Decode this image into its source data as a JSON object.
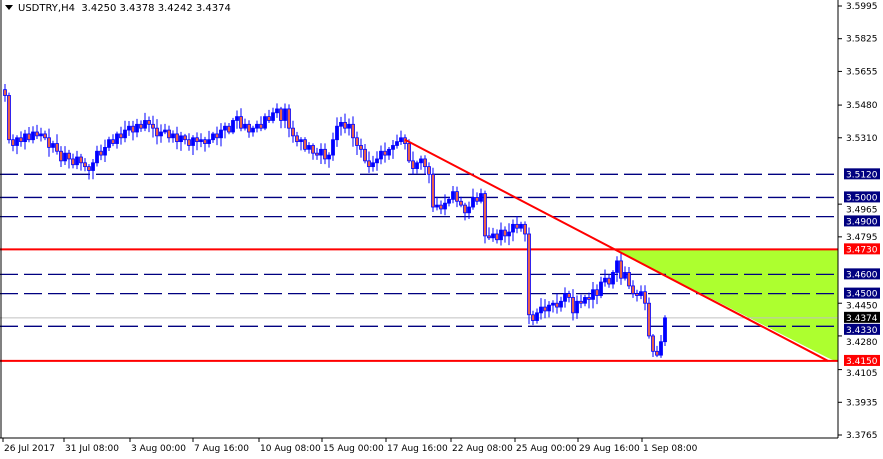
{
  "header": {
    "symbol": "USDTRY,H4",
    "open": "3.4250",
    "high": "3.4378",
    "low": "3.4242",
    "close": "3.4374",
    "menu_icon": "triangle-down-icon"
  },
  "chart_data": {
    "type": "candlestick",
    "symbol": "USDTRY",
    "timeframe": "H4",
    "ylim": [
      3.3765,
      3.5995
    ],
    "y_ticks": [
      "3.5995",
      "3.5825",
      "3.5655",
      "3.5480",
      "3.5310",
      "3.4965",
      "3.4795",
      "3.4450",
      "3.4280",
      "3.4105",
      "3.3935",
      "3.3765"
    ],
    "x_ticks": [
      "26 Jul 2017",
      "31 Jul 08:00",
      "3 Aug 00:00",
      "7 Aug 16:00",
      "10 Aug 08:00",
      "15 Aug 00:00",
      "17 Aug 16:00",
      "22 Aug 08:00",
      "25 Aug 00:00",
      "29 Aug 16:00",
      "1 Sep 08:00"
    ],
    "grid": false,
    "colors": {
      "bull": "#0000ff",
      "bear_fill": "#e8604c",
      "support_line": "#ff0000",
      "level_line": "#000080",
      "zone": "#adff2f",
      "current_price": "#c0c0c0"
    },
    "closes": [
      3.553,
      3.53,
      3.527,
      3.531,
      3.529,
      3.533,
      3.53,
      3.534,
      3.532,
      3.533,
      3.531,
      3.526,
      3.528,
      3.524,
      3.519,
      3.523,
      3.52,
      3.517,
      3.521,
      3.518,
      3.516,
      3.514,
      3.518,
      3.524,
      3.522,
      3.526,
      3.53,
      3.528,
      3.533,
      3.531,
      3.535,
      3.537,
      3.534,
      3.538,
      3.536,
      3.54,
      3.538,
      3.536,
      3.532,
      3.534,
      3.535,
      3.531,
      3.533,
      3.529,
      3.532,
      3.53,
      3.527,
      3.531,
      3.529,
      3.53,
      3.528,
      3.53,
      3.533,
      3.531,
      3.535,
      3.537,
      3.534,
      3.54,
      3.542,
      3.536,
      3.538,
      3.534,
      3.536,
      3.538,
      3.536,
      3.542,
      3.54,
      3.544,
      3.546,
      3.54,
      3.546,
      3.536,
      3.532,
      3.529,
      3.53,
      3.525,
      3.527,
      3.523,
      3.522,
      3.525,
      3.52,
      3.522,
      3.53,
      3.537,
      3.539,
      3.536,
      3.538,
      3.531,
      3.527,
      3.525,
      3.519,
      3.516,
      3.518,
      3.52,
      3.524,
      3.522,
      3.525,
      3.527,
      3.529,
      3.531,
      3.528,
      3.519,
      3.515,
      3.518,
      3.52,
      3.516,
      3.512,
      3.495,
      3.496,
      3.494,
      3.497,
      3.499,
      3.503,
      3.498,
      3.496,
      3.492,
      3.495,
      3.5,
      3.498,
      3.502,
      3.48,
      3.479,
      3.481,
      3.478,
      3.483,
      3.48,
      3.482,
      3.486,
      3.484,
      3.486,
      3.481,
      3.439,
      3.436,
      3.44,
      3.443,
      3.441,
      3.444,
      3.445,
      3.443,
      3.446,
      3.45,
      3.448,
      3.44,
      3.446,
      3.445,
      3.448,
      3.447,
      3.452,
      3.449,
      3.456,
      3.458,
      3.455,
      3.461,
      3.467,
      3.458,
      3.461,
      3.454,
      3.45,
      3.449,
      3.451,
      3.445,
      3.428,
      3.42,
      3.418,
      3.425,
      3.4374
    ],
    "horizontal_levels": [
      {
        "price": 3.512,
        "label": "3.5120",
        "style": "dashed",
        "color": "#000080"
      },
      {
        "price": 3.5,
        "label": "3.5000",
        "style": "dashed",
        "color": "#000080"
      },
      {
        "price": 3.49,
        "label": "3.4900",
        "style": "dashed",
        "color": "#000080"
      },
      {
        "price": 3.473,
        "label": "3.4730",
        "style": "solid",
        "color": "#ff0000"
      },
      {
        "price": 3.46,
        "label": "3.4600",
        "style": "dashed",
        "color": "#000080"
      },
      {
        "price": 3.45,
        "label": "3.4500",
        "style": "dashed",
        "color": "#000080"
      },
      {
        "price": 3.433,
        "label": "3.4330",
        "style": "dashed",
        "color": "#000080"
      },
      {
        "price": 3.415,
        "label": "3.4150",
        "style": "solid",
        "color": "#ff0000"
      }
    ],
    "current_price": {
      "price": 3.4374,
      "label": "3.4374"
    },
    "trendline": {
      "from_price": 3.53,
      "to_price": 3.415,
      "color": "#ff0000"
    }
  }
}
